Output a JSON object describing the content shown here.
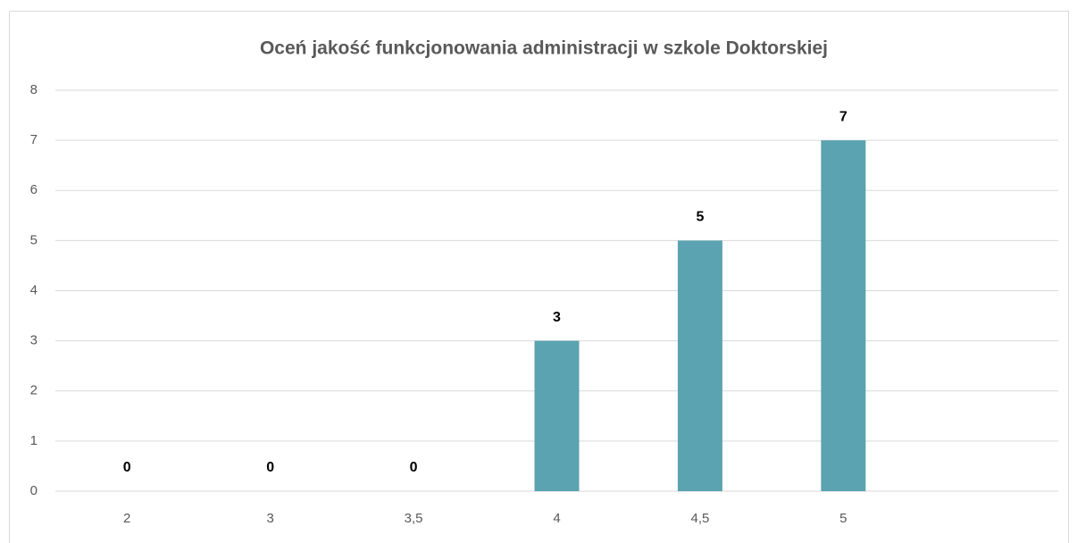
{
  "chart_data": {
    "type": "bar",
    "title": "Oceń jakość funkcjonowania administracji w szkole Doktorskiej",
    "categories": [
      "2",
      "3",
      "3,5",
      "4",
      "4,5",
      "5",
      null
    ],
    "values": [
      0,
      0,
      0,
      3,
      5,
      7,
      null
    ],
    "color": "#5ba3b0",
    "ylim": [
      0,
      8
    ],
    "yticks": [
      0,
      1,
      2,
      3,
      4,
      5,
      6,
      7,
      8
    ],
    "grid": true
  }
}
